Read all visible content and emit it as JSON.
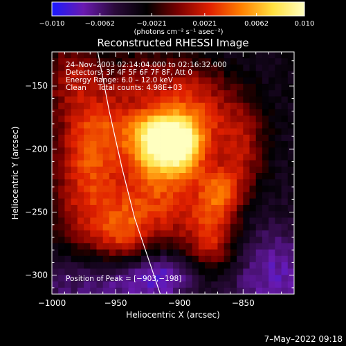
{
  "chart_data": {
    "type": "heatmap",
    "title": "Reconstructed RHESSI Image",
    "xlabel": "Heliocentric X (arcsec)",
    "ylabel": "Heliocentric Y (arcsec)",
    "xlim": [
      -1000,
      -810
    ],
    "ylim": [
      -315,
      -123
    ],
    "x_ticks": [
      -1000,
      -950,
      -900,
      -850
    ],
    "x_tick_labels": [
      "−1000",
      "−950",
      "−900",
      "−850"
    ],
    "y_ticks": [
      -150,
      -200,
      -250,
      -300
    ],
    "y_tick_labels": [
      "−150",
      "−200",
      "−250",
      "−300"
    ],
    "colorbar": {
      "range": [
        -0.01,
        0.01
      ],
      "ticks": [
        -0.01,
        -0.0062,
        -0.0021,
        0.0021,
        0.0062,
        0.01
      ],
      "tick_labels": [
        "−0.010",
        "−0.0062",
        "−0.0021",
        "0.0021",
        "0.0062",
        "0.010"
      ],
      "units_label": "(photons cm⁻² s⁻¹ asec⁻²)",
      "colors": [
        "#1a1aff",
        "#6a1ab0",
        "#2a0a3a",
        "#000000",
        "#7a0000",
        "#e02000",
        "#ff8000",
        "#ffe040",
        "#ffffc0"
      ]
    },
    "annotations": [
      "24–Nov–2003 02:14:04.000 to 02:16:32.000",
      "Detectors: 3F 4F 5F 6F 7F 8F, Att 0",
      "Energy Range: 6.0 – 12.0 keV",
      "Clean     Total counts: 4.98E+03"
    ],
    "peak_label": "Position of Peak = [−903,−198]",
    "peak": [
      -903,
      -198
    ],
    "sources": [
      {
        "x": -903,
        "y": -198,
        "amp": 0.01,
        "sx": 16,
        "sy": 16
      },
      {
        "x": -918,
        "y": -188,
        "amp": 0.006,
        "sx": 18,
        "sy": 14
      },
      {
        "x": -935,
        "y": -215,
        "amp": 0.005,
        "sx": 28,
        "sy": 30
      },
      {
        "x": -965,
        "y": -180,
        "amp": 0.0042,
        "sx": 22,
        "sy": 26
      },
      {
        "x": -975,
        "y": -240,
        "amp": 0.0042,
        "sx": 18,
        "sy": 40
      },
      {
        "x": -945,
        "y": -268,
        "amp": 0.005,
        "sx": 16,
        "sy": 18
      },
      {
        "x": -905,
        "y": -245,
        "amp": 0.004,
        "sx": 24,
        "sy": 24
      },
      {
        "x": -868,
        "y": -235,
        "amp": 0.006,
        "sx": 12,
        "sy": 16
      },
      {
        "x": -875,
        "y": -275,
        "amp": 0.005,
        "sx": 14,
        "sy": 18
      },
      {
        "x": -880,
        "y": -175,
        "amp": 0.004,
        "sx": 22,
        "sy": 20
      },
      {
        "x": -850,
        "y": -200,
        "amp": 0.004,
        "sx": 12,
        "sy": 24
      },
      {
        "x": -895,
        "y": -150,
        "amp": 0.003,
        "sx": 20,
        "sy": 18
      },
      {
        "x": -930,
        "y": -145,
        "amp": 0.0028,
        "sx": 16,
        "sy": 14
      },
      {
        "x": -985,
        "y": -140,
        "amp": 0.0035,
        "sx": 16,
        "sy": 18
      },
      {
        "x": -960,
        "y": -305,
        "amp": -0.004,
        "sx": 45,
        "sy": 18
      },
      {
        "x": -945,
        "y": -210,
        "amp": -0.002,
        "sx": 12,
        "sy": 18
      },
      {
        "x": -825,
        "y": -300,
        "amp": -0.004,
        "sx": 25,
        "sy": 28
      },
      {
        "x": -910,
        "y": -300,
        "amp": -0.003,
        "sx": 18,
        "sy": 12
      }
    ],
    "limb": [
      [
        -964,
        -123
      ],
      [
        -955,
        -170
      ],
      [
        -945,
        -215
      ],
      [
        -935,
        -255
      ],
      [
        -925,
        -285
      ],
      [
        -915,
        -315
      ]
    ],
    "grid": false,
    "legend": "none"
  },
  "timestamp": "7–May–2022 09:18"
}
